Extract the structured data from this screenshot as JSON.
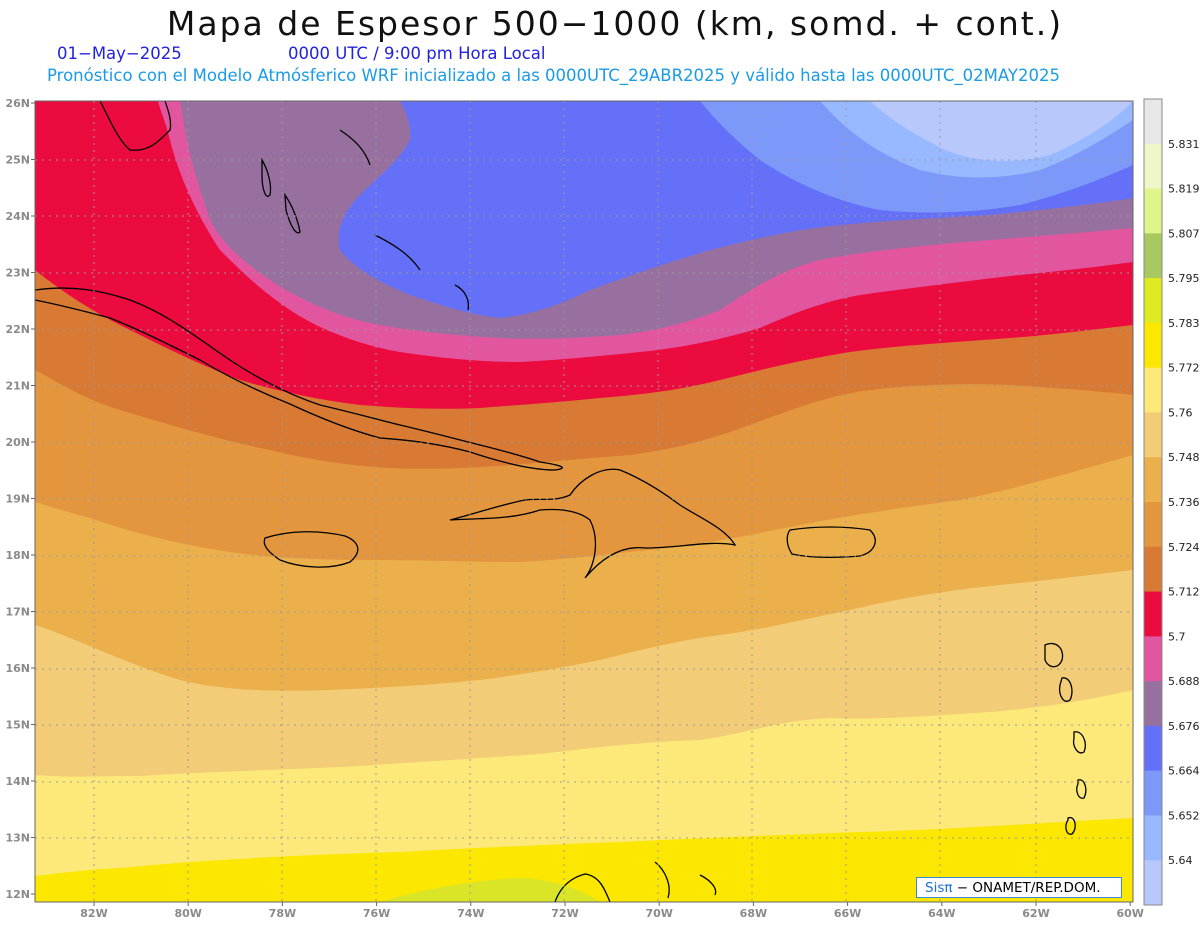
{
  "header": {
    "title": "Mapa de Espesor 500−1000 (km, somd. + cont.)",
    "date": "01−May−2025",
    "time": "0000 UTC / 9:00 pm Hora Local",
    "description": "Pronóstico con el Modelo Atmósferico WRF inicializado a las 0000UTC_29ABR2025 y válido hasta las  0000UTC_02MAY2025"
  },
  "map": {
    "lat_labels": [
      "26N",
      "25N",
      "24N",
      "23N",
      "22N",
      "21N",
      "20N",
      "19N",
      "18N",
      "17N",
      "16N",
      "15N",
      "14N",
      "13N",
      "12N"
    ],
    "lon_labels": [
      "82W",
      "80W",
      "78W",
      "76W",
      "74W",
      "72W",
      "70W",
      "68W",
      "66W",
      "64W",
      "62W",
      "60W"
    ]
  },
  "colorbar": {
    "labels": [
      "5.831",
      "5.819",
      "5.807",
      "5.795",
      "5.783",
      "5.772",
      "5.76",
      "5.748",
      "5.736",
      "5.724",
      "5.712",
      "5.7",
      "5.688",
      "5.676",
      "5.664",
      "5.652",
      "5.64"
    ],
    "colors": [
      "#e8e8e8",
      "#eef7c8",
      "#def58c",
      "#a8c960",
      "#e0ea22",
      "#fbe700",
      "#fde97a",
      "#f2cc76",
      "#ebb04c",
      "#e3963e",
      "#d97a34",
      "#ec0b3e",
      "#e256a0",
      "#98709f",
      "#6470f7",
      "#7c98f8",
      "#98b8ff",
      "#b8c8fb"
    ]
  },
  "credit": {
    "brand": "Sisπ",
    "text": " − ONAMET/REP.DOM."
  }
}
